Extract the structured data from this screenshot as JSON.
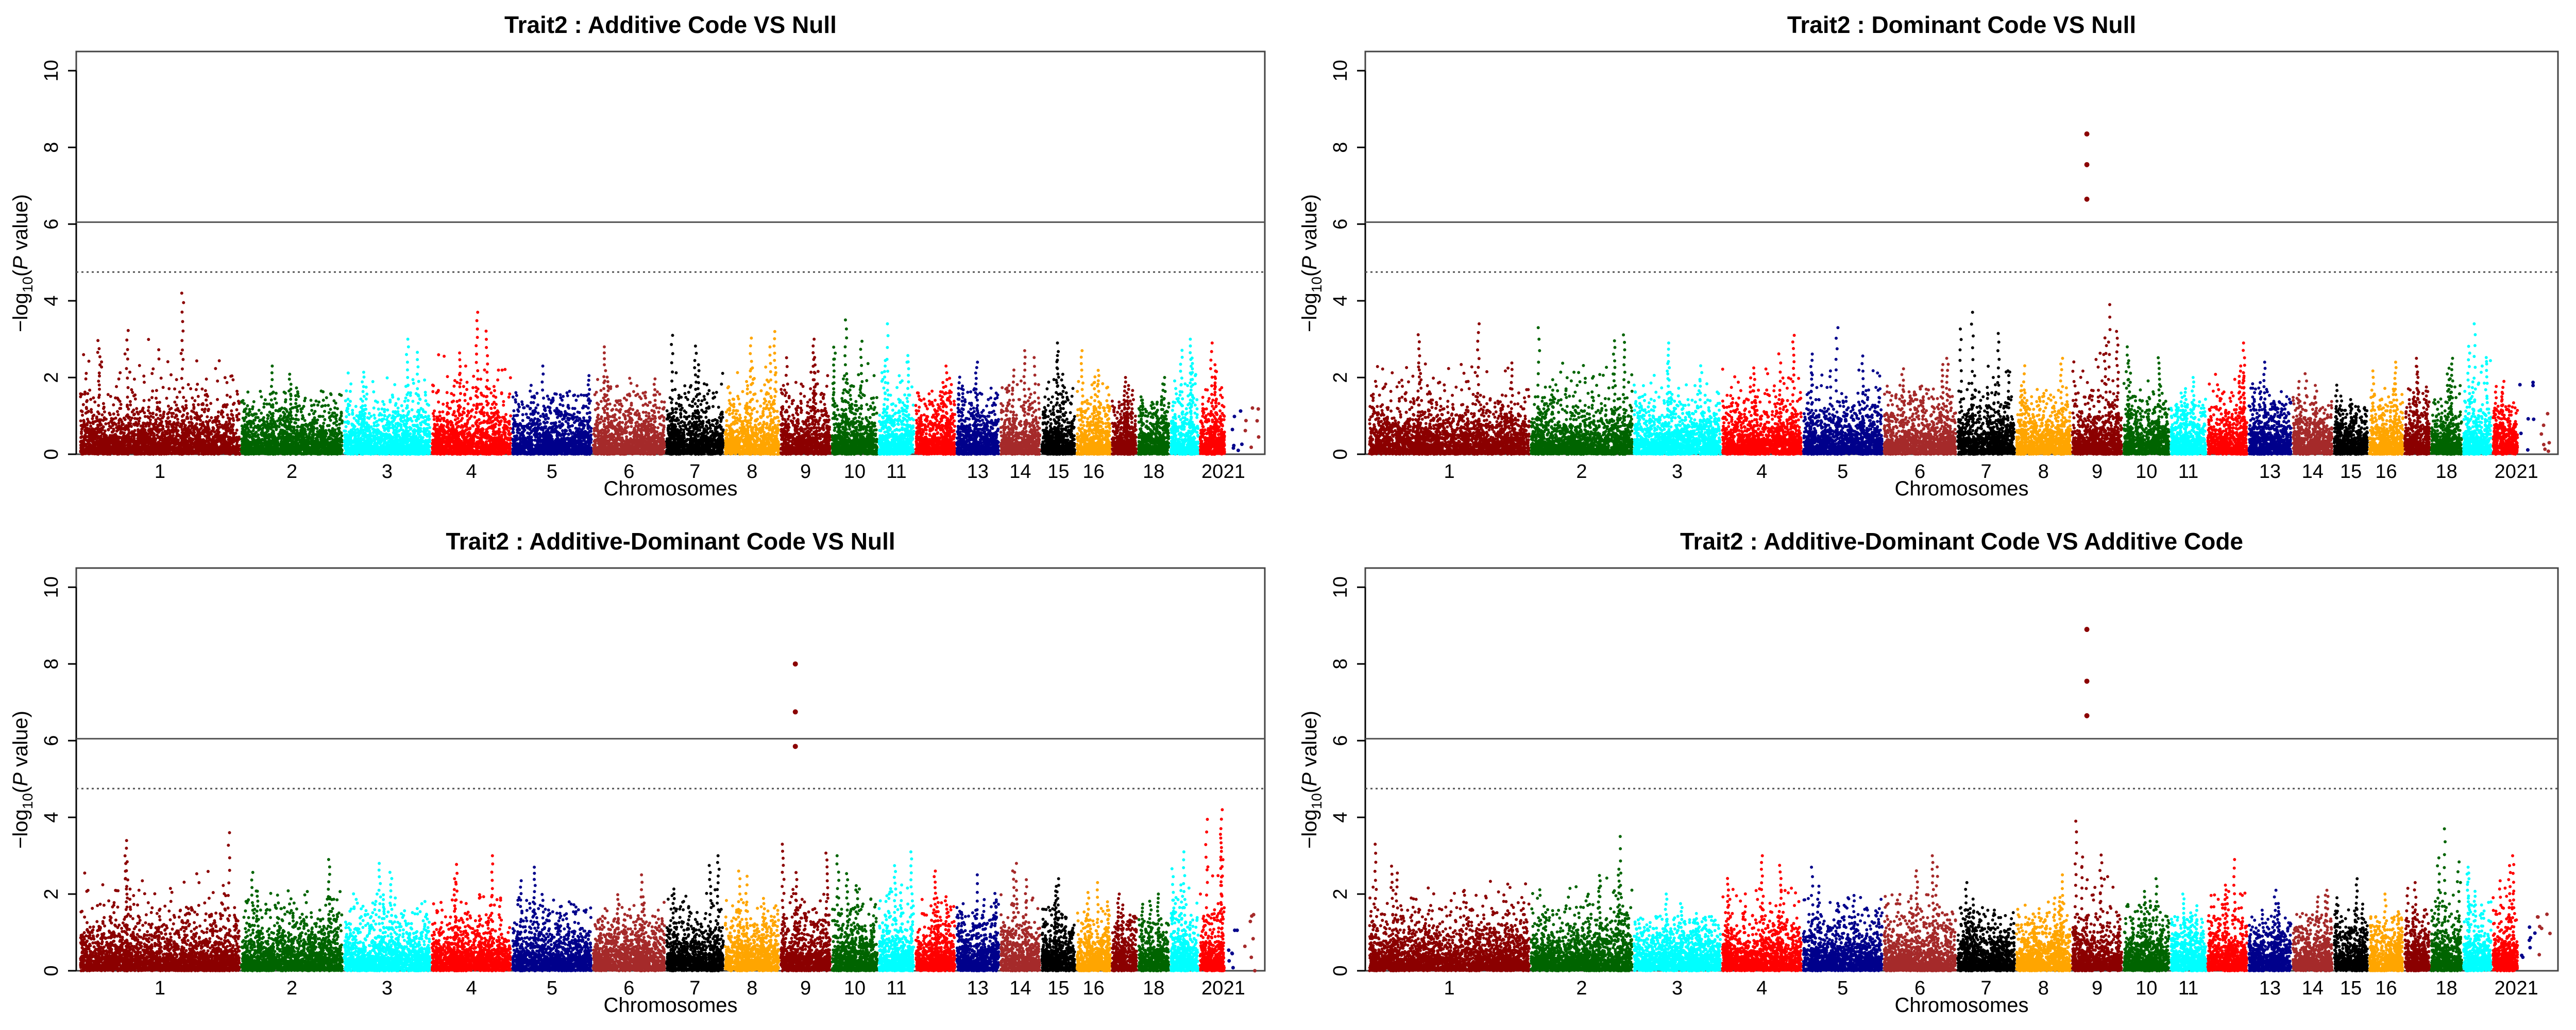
{
  "chart_data": [
    {
      "type": "scatter",
      "subtype": "manhattan",
      "title": "Trait2 : Additive Code VS Null",
      "xlabel": "Chromosomes",
      "ylabel_prefix": "−log",
      "ylabel_sub": "10",
      "ylabel_mid": "(",
      "ylabel_p": "P",
      "ylabel_suffix": " value)",
      "ylim": [
        0,
        10.5
      ],
      "yticks": [
        0,
        2,
        4,
        6,
        8,
        10
      ],
      "threshold_solid": 6.05,
      "threshold_dotted": 4.75,
      "chromosomes": [
        "1",
        "2",
        "3",
        "4",
        "5",
        "6",
        "7",
        "8",
        "9",
        "10",
        "11",
        "12",
        "13",
        "14",
        "15",
        "16",
        "17",
        "18",
        "19",
        "20",
        "21",
        "22"
      ],
      "x_tick_labels": [
        "1",
        "2",
        "3",
        "4",
        "5",
        "6",
        "7",
        "8",
        "9",
        "10",
        "11",
        "",
        "13",
        "14",
        "15",
        "16",
        "",
        "18",
        "",
        "20",
        "21",
        ""
      ],
      "chromosome_sizes": [
        11,
        7,
        6,
        5.5,
        5.5,
        5,
        4,
        3.8,
        3.5,
        3.2,
        2.5,
        2.8,
        3,
        2.8,
        2.4,
        2.4,
        1.8,
        2.2,
        2,
        1.8,
        1.2,
        1.2
      ],
      "colors": [
        "#8b0000",
        "#006400",
        "#00ffff",
        "#ff0000",
        "#00008b",
        "#a52a2a",
        "#000000",
        "#ffa500"
      ],
      "max_per_chr": [
        4.2,
        2.3,
        3.0,
        3.7,
        2.3,
        2.8,
        3.1,
        3.2,
        3.0,
        3.5,
        3.4,
        2.3,
        2.4,
        2.7,
        2.9,
        2.7,
        2.0,
        2.0,
        3.0,
        2.9,
        1.5,
        1.4
      ],
      "peaks": []
    },
    {
      "type": "scatter",
      "subtype": "manhattan",
      "title": "Trait2 : Dominant Code VS Null",
      "xlabel": "Chromosomes",
      "ylabel_prefix": "−log",
      "ylabel_sub": "10",
      "ylabel_mid": "(",
      "ylabel_p": "P",
      "ylabel_suffix": " value)",
      "ylim": [
        0,
        10.5
      ],
      "yticks": [
        0,
        2,
        4,
        6,
        8,
        10
      ],
      "threshold_solid": 6.05,
      "threshold_dotted": 4.75,
      "chromosomes": [
        "1",
        "2",
        "3",
        "4",
        "5",
        "6",
        "7",
        "8",
        "9",
        "10",
        "11",
        "12",
        "13",
        "14",
        "15",
        "16",
        "17",
        "18",
        "19",
        "20",
        "21",
        "22"
      ],
      "x_tick_labels": [
        "1",
        "2",
        "3",
        "4",
        "5",
        "6",
        "7",
        "8",
        "9",
        "10",
        "11",
        "",
        "13",
        "14",
        "15",
        "16",
        "",
        "18",
        "",
        "20",
        "21",
        ""
      ],
      "chromosome_sizes": [
        11,
        7,
        6,
        5.5,
        5.5,
        5,
        4,
        3.8,
        3.5,
        3.2,
        2.5,
        2.8,
        3,
        2.8,
        2.4,
        2.4,
        1.8,
        2.2,
        2,
        1.8,
        1.2,
        1.2
      ],
      "colors": [
        "#8b0000",
        "#006400",
        "#00ffff",
        "#ff0000",
        "#00008b",
        "#a52a2a",
        "#000000",
        "#ffa500"
      ],
      "max_per_chr": [
        3.4,
        3.3,
        2.9,
        3.1,
        3.3,
        2.5,
        3.7,
        2.5,
        3.9,
        2.8,
        2.0,
        2.9,
        2.4,
        2.1,
        1.8,
        2.4,
        2.5,
        2.5,
        3.4,
        1.9,
        1.9,
        1.2
      ],
      "peaks": [
        {
          "chromosome": "9",
          "values": [
            8.35,
            7.55,
            6.65
          ]
        }
      ]
    },
    {
      "type": "scatter",
      "subtype": "manhattan",
      "title": "Trait2 : Additive-Dominant Code VS Null",
      "xlabel": "Chromosomes",
      "ylabel_prefix": "−log",
      "ylabel_sub": "10",
      "ylabel_mid": "(",
      "ylabel_p": "P",
      "ylabel_suffix": " value)",
      "ylim": [
        0,
        10.5
      ],
      "yticks": [
        0,
        2,
        4,
        6,
        8,
        10
      ],
      "threshold_solid": 6.05,
      "threshold_dotted": 4.75,
      "chromosomes": [
        "1",
        "2",
        "3",
        "4",
        "5",
        "6",
        "7",
        "8",
        "9",
        "10",
        "11",
        "12",
        "13",
        "14",
        "15",
        "16",
        "17",
        "18",
        "19",
        "20",
        "21",
        "22"
      ],
      "x_tick_labels": [
        "1",
        "2",
        "3",
        "4",
        "5",
        "6",
        "7",
        "8",
        "9",
        "10",
        "11",
        "",
        "13",
        "14",
        "15",
        "16",
        "",
        "18",
        "",
        "20",
        "21",
        ""
      ],
      "chromosome_sizes": [
        11,
        7,
        6,
        5.5,
        5.5,
        5,
        4,
        3.8,
        3.5,
        3.2,
        2.5,
        2.8,
        3,
        2.8,
        2.4,
        2.4,
        1.8,
        2.2,
        2,
        1.8,
        1.2,
        1.2
      ],
      "colors": [
        "#8b0000",
        "#006400",
        "#00ffff",
        "#ff0000",
        "#00008b",
        "#a52a2a",
        "#000000",
        "#ffa500"
      ],
      "max_per_chr": [
        3.6,
        2.9,
        2.8,
        3.0,
        2.7,
        2.5,
        3.0,
        2.6,
        3.3,
        3.0,
        3.1,
        2.6,
        2.5,
        2.8,
        2.4,
        2.3,
        2.0,
        2.0,
        3.1,
        4.2,
        1.4,
        1.5
      ],
      "peaks": [
        {
          "chromosome": "9",
          "values": [
            8.0,
            6.75,
            5.85
          ]
        }
      ]
    },
    {
      "type": "scatter",
      "subtype": "manhattan",
      "title": "Trait2 : Additive-Dominant Code VS Additive Code",
      "xlabel": "Chromosomes",
      "ylabel_prefix": "−log",
      "ylabel_sub": "10",
      "ylabel_mid": "(",
      "ylabel_p": "P",
      "ylabel_suffix": " value)",
      "ylim": [
        0,
        10.5
      ],
      "yticks": [
        0,
        2,
        4,
        6,
        8,
        10
      ],
      "threshold_solid": 6.05,
      "threshold_dotted": 4.75,
      "chromosomes": [
        "1",
        "2",
        "3",
        "4",
        "5",
        "6",
        "7",
        "8",
        "9",
        "10",
        "11",
        "12",
        "13",
        "14",
        "15",
        "16",
        "17",
        "18",
        "19",
        "20",
        "21",
        "22"
      ],
      "x_tick_labels": [
        "1",
        "2",
        "3",
        "4",
        "5",
        "6",
        "7",
        "8",
        "9",
        "10",
        "11",
        "",
        "13",
        "14",
        "15",
        "16",
        "",
        "18",
        "",
        "20",
        "21",
        ""
      ],
      "chromosome_sizes": [
        11,
        7,
        6,
        5.5,
        5.5,
        5,
        4,
        3.8,
        3.5,
        3.2,
        2.5,
        2.8,
        3,
        2.8,
        2.4,
        2.4,
        1.8,
        2.2,
        2,
        1.8,
        1.2,
        1.2
      ],
      "colors": [
        "#8b0000",
        "#006400",
        "#00ffff",
        "#ff0000",
        "#00008b",
        "#a52a2a",
        "#000000",
        "#ffa500"
      ],
      "max_per_chr": [
        3.3,
        3.5,
        2.0,
        3.0,
        2.7,
        3.0,
        2.3,
        2.5,
        3.9,
        2.4,
        2.0,
        2.9,
        2.1,
        2.1,
        2.4,
        2.0,
        2.3,
        3.7,
        2.7,
        3.0,
        1.8,
        1.6
      ],
      "peaks": [
        {
          "chromosome": "9",
          "values": [
            8.9,
            7.55,
            6.65
          ]
        }
      ]
    }
  ]
}
